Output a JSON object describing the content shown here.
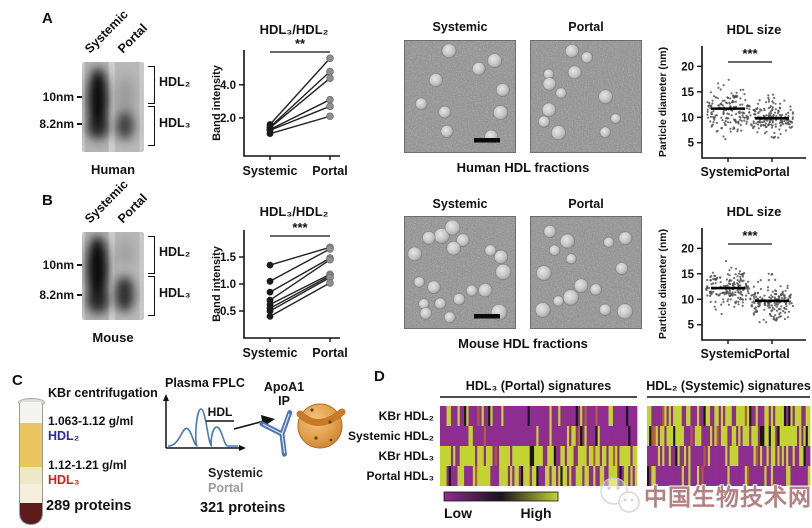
{
  "watermark": {
    "text": "中国生物技术网"
  },
  "panelA": {
    "label": "A",
    "gel": {
      "lanes": [
        "Systemic",
        "Portal"
      ],
      "markers": [
        "10nm",
        "8.2nm"
      ],
      "bands": [
        "HDL₂",
        "HDL₃"
      ],
      "caption": "Human"
    },
    "tem": {
      "titles": [
        "Systemic",
        "Portal"
      ],
      "caption": "Human HDL fractions",
      "particle_counts": [
        10,
        12
      ]
    }
  },
  "panelB": {
    "label": "B",
    "gel": {
      "lanes": [
        "Systemic",
        "Portal"
      ],
      "markers": [
        "10nm",
        "8.2nm"
      ],
      "bands": [
        "HDL₂",
        "HDL₃"
      ],
      "caption": "Mouse"
    },
    "tem": {
      "titles": [
        "Systemic",
        "Portal"
      ],
      "caption": "Mouse HDL fractions",
      "particle_counts": [
        19,
        15
      ]
    }
  },
  "panelC": {
    "label": "C",
    "kbr": {
      "title": "KBr centrifugation",
      "fraction1_range": "1.063-1.12 g/ml",
      "fraction1_name": "HDL₂",
      "fraction2_range": "1.12-1.21 g/ml",
      "fraction2_name": "HDL₃",
      "protein_count": "289 proteins"
    },
    "fplc": {
      "title": "Plasma FPLC",
      "ip_line1": "ApoA1",
      "ip_line2": "IP",
      "sample1": "Systemic",
      "sample2": "Portal",
      "protein_count": "321 proteins"
    }
  },
  "panelD": {
    "label": "D"
  },
  "chart_data": [
    {
      "id": "pairedA",
      "type": "line",
      "title": "HDL₃/HDL₂",
      "significance": "**",
      "ylabel": "Band intensity",
      "categories": [
        "Systemic",
        "Portal"
      ],
      "ylim": [
        -0.3,
        6.1
      ],
      "yticks": [
        {
          "v": 2,
          "label": "2.0"
        },
        {
          "v": 4,
          "label": "4.0"
        }
      ],
      "pairs": [
        [
          1.6,
          5.6
        ],
        [
          1.45,
          4.8
        ],
        [
          1.4,
          4.4
        ],
        [
          1.3,
          3.1
        ],
        [
          1.25,
          2.7
        ],
        [
          1.05,
          2.1
        ]
      ]
    },
    {
      "id": "sizeA",
      "type": "scatter",
      "title": "HDL size",
      "significance": "***",
      "ylabel": "Particle diameter (nm)",
      "categories": [
        "Systemic",
        "Portal"
      ],
      "ylim": [
        2,
        24
      ],
      "yticks": [
        {
          "v": 5,
          "label": "5"
        },
        {
          "v": 10,
          "label": "10"
        },
        {
          "v": 15,
          "label": "15"
        },
        {
          "v": 20,
          "label": "20"
        }
      ],
      "groups": [
        {
          "name": "Systemic",
          "mean": 11.7,
          "sd": 2.1,
          "min": 4.5,
          "max": 19.5,
          "n": 170
        },
        {
          "name": "Portal",
          "mean": 9.8,
          "sd": 1.6,
          "min": 6,
          "max": 17,
          "n": 170
        }
      ]
    },
    {
      "id": "pairedB",
      "type": "line",
      "title": "HDL₃/HDL₂",
      "significance": "***",
      "ylabel": "Band intensity",
      "categories": [
        "Systemic",
        "Portal"
      ],
      "ylim": [
        0,
        2.0
      ],
      "yticks": [
        {
          "v": 0.5,
          "label": "0.5"
        },
        {
          "v": 1,
          "label": "1.0"
        },
        {
          "v": 1.5,
          "label": "1.5"
        }
      ],
      "pairs": [
        [
          1.35,
          1.68
        ],
        [
          1.05,
          1.65
        ],
        [
          0.85,
          1.48
        ],
        [
          0.7,
          1.45
        ],
        [
          0.62,
          1.18
        ],
        [
          0.55,
          1.15
        ],
        [
          0.5,
          1.12
        ],
        [
          0.4,
          1.02
        ]
      ]
    },
    {
      "id": "sizeB",
      "type": "scatter",
      "title": "HDL size",
      "significance": "***",
      "ylabel": "Particle diameter (nm)",
      "categories": [
        "Systemic",
        "Portal"
      ],
      "ylim": [
        2,
        24
      ],
      "yticks": [
        {
          "v": 5,
          "label": "5"
        },
        {
          "v": 10,
          "label": "10"
        },
        {
          "v": 15,
          "label": "15"
        },
        {
          "v": 20,
          "label": "20"
        }
      ],
      "groups": [
        {
          "name": "Systemic",
          "mean": 12.2,
          "sd": 2.0,
          "min": 6,
          "max": 17.5,
          "n": 170
        },
        {
          "name": "Portal",
          "mean": 9.7,
          "sd": 1.9,
          "min": 5.5,
          "max": 16,
          "n": 170
        }
      ]
    },
    {
      "id": "fplc",
      "type": "line",
      "title": "Plasma FPLC",
      "annotation": "HDL",
      "peaks": [
        {
          "x": 0.28,
          "h": 0.42
        },
        {
          "x": 0.5,
          "h": 0.88
        },
        {
          "x": 0.74,
          "h": 0.45
        }
      ]
    },
    {
      "id": "heatmapD",
      "type": "heatmap",
      "row_labels": [
        "KBr HDL₂",
        "Systemic HDL₂",
        "KBr HDL₃",
        "Portal HDL₃"
      ],
      "section_labels": [
        "HDL₃ (Portal) signatures",
        "HDL₂ (Systemic) signatures"
      ],
      "section_columns": [
        90,
        75
      ],
      "green_fraction": [
        [
          0.13,
          0.62
        ],
        [
          0.06,
          0.74
        ],
        [
          0.72,
          0.38
        ],
        [
          0.6,
          0.16
        ]
      ],
      "legend": {
        "low": "Low",
        "high": "High"
      },
      "colors": {
        "low": "#8e2d90",
        "mid": "#1c1220",
        "high": "#c3d430",
        "accent": "#b06038"
      }
    }
  ]
}
